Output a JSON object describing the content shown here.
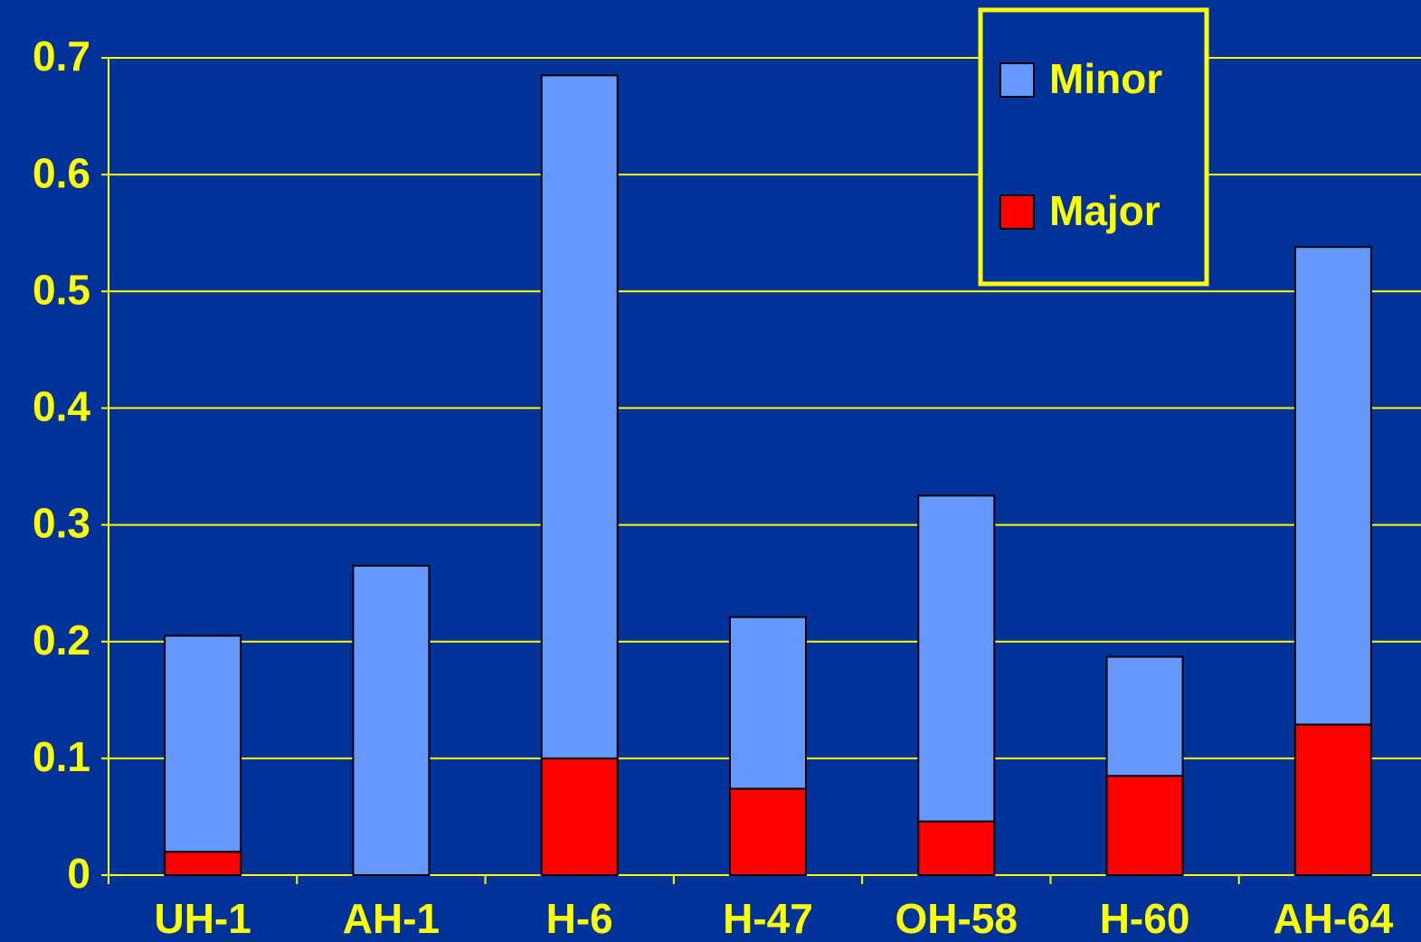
{
  "chart_data": {
    "type": "stacked_bar",
    "categories": [
      "UH-1",
      "AH-1",
      "H-6",
      "H-47",
      "OH-58",
      "H-60",
      "AH-64"
    ],
    "series": [
      {
        "name": "Major",
        "color": "#ff0000",
        "values": [
          0.02,
          0,
          0.1,
          0.074,
          0.046,
          0.085,
          0.129
        ]
      },
      {
        "name": "Minor",
        "color": "#6699ff",
        "values": [
          0.185,
          0.265,
          0.585,
          0.147,
          0.279,
          0.102,
          0.409
        ]
      }
    ],
    "ylim": [
      0,
      0.7
    ],
    "yticks": [
      0,
      0.1,
      0.2,
      0.3,
      0.4,
      0.5,
      0.6,
      0.7
    ],
    "grid": true
  }
}
